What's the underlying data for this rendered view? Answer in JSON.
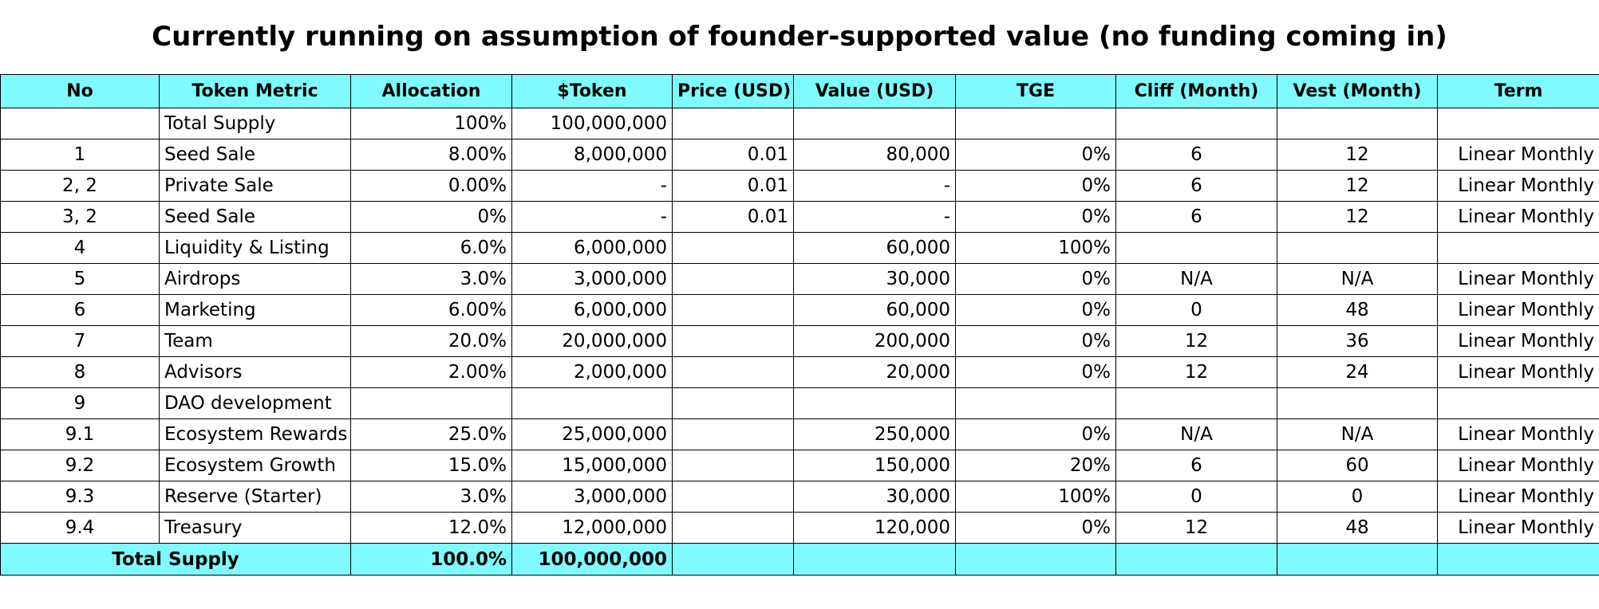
{
  "title": "Currently running on assumption of founder-supported value (no funding coming in)",
  "headers": {
    "no": "No",
    "metric": "Token Metric",
    "allocation": "Allocation",
    "token": "$Token",
    "price": "Price (USD)",
    "value": "Value (USD)",
    "tge": "TGE",
    "cliff": "Cliff (Month)",
    "vest": "Vest (Month)",
    "term": "Term"
  },
  "rows": [
    {
      "no": "",
      "metric": "Total Supply",
      "allocation": "100%",
      "token": "100,000,000",
      "price": "",
      "value": "",
      "tge": "",
      "cliff": "",
      "vest": "",
      "term": ""
    },
    {
      "no": "1",
      "metric": "Seed Sale",
      "allocation": "8.00%",
      "token": "8,000,000",
      "price": "0.01",
      "value": "80,000",
      "tge": "0%",
      "cliff": "6",
      "vest": "12",
      "term": "Linear Monthly"
    },
    {
      "no": "2, 2",
      "metric": "Private Sale",
      "allocation": "0.00%",
      "token": "-",
      "price": "0.01",
      "value": "-",
      "tge": "0%",
      "cliff": "6",
      "vest": "12",
      "term": "Linear Monthly"
    },
    {
      "no": "3, 2",
      "metric": "Seed Sale",
      "allocation": "0%",
      "token": "-",
      "price": "0.01",
      "value": "-",
      "tge": "0%",
      "cliff": "6",
      "vest": "12",
      "term": "Linear Monthly"
    },
    {
      "no": "4",
      "metric": "Liquidity & Listing",
      "allocation": "6.0%",
      "token": "6,000,000",
      "price": "",
      "value": "60,000",
      "tge": "100%",
      "cliff": "",
      "vest": "",
      "term": ""
    },
    {
      "no": "5",
      "metric": "Airdrops",
      "allocation": "3.0%",
      "token": "3,000,000",
      "price": "",
      "value": "30,000",
      "tge": "0%",
      "cliff": "N/A",
      "vest": "N/A",
      "term": "Linear Monthly"
    },
    {
      "no": "6",
      "metric": "Marketing",
      "allocation": "6.00%",
      "token": "6,000,000",
      "price": "",
      "value": "60,000",
      "tge": "0%",
      "cliff": "0",
      "vest": "48",
      "term": "Linear Monthly"
    },
    {
      "no": "7",
      "metric": "Team",
      "allocation": "20.0%",
      "token": "20,000,000",
      "price": "",
      "value": "200,000",
      "tge": "0%",
      "cliff": "12",
      "vest": "36",
      "term": "Linear Monthly"
    },
    {
      "no": "8",
      "metric": "Advisors",
      "allocation": "2.00%",
      "token": "2,000,000",
      "price": "",
      "value": "20,000",
      "tge": "0%",
      "cliff": "12",
      "vest": "24",
      "term": "Linear Monthly"
    },
    {
      "no": "9",
      "metric": "DAO development",
      "allocation": "",
      "token": "",
      "price": "",
      "value": "",
      "tge": "",
      "cliff": "",
      "vest": "",
      "term": ""
    },
    {
      "no": "9.1",
      "metric": "Ecosystem Rewards",
      "allocation": "25.0%",
      "token": "25,000,000",
      "price": "",
      "value": "250,000",
      "tge": "0%",
      "cliff": "N/A",
      "vest": "N/A",
      "term": "Linear Monthly"
    },
    {
      "no": "9.2",
      "metric": "Ecosystem Growth",
      "allocation": "15.0%",
      "token": "15,000,000",
      "price": "",
      "value": "150,000",
      "tge": "20%",
      "cliff": "6",
      "vest": "60",
      "term": "Linear Monthly"
    },
    {
      "no": "9.3",
      "metric": "Reserve (Starter)",
      "allocation": "3.0%",
      "token": "3,000,000",
      "price": "",
      "value": "30,000",
      "tge": "100%",
      "cliff": "0",
      "vest": "0",
      "term": "Linear Monthly"
    },
    {
      "no": "9.4",
      "metric": "Treasury",
      "allocation": "12.0%",
      "token": "12,000,000",
      "price": "",
      "value": "120,000",
      "tge": "0%",
      "cliff": "12",
      "vest": "48",
      "term": "Linear Monthly"
    }
  ],
  "footer": {
    "label": "Total Supply",
    "allocation": "100.0%",
    "token": "100,000,000"
  }
}
